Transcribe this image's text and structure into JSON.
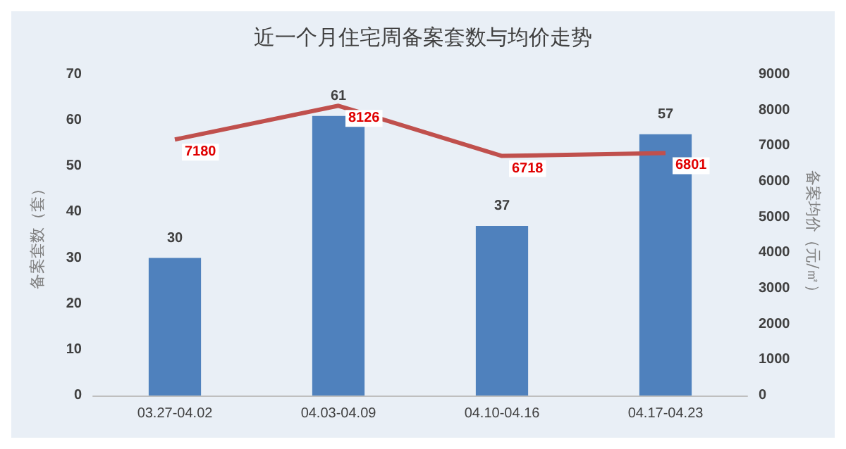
{
  "chart_data": {
    "type": "bar",
    "title": "近一个月住宅周备案套数与均价走势",
    "ylabel": "备案套数（套）",
    "y2label": "备案均价（元/㎡）",
    "categories": [
      "03.27-04.02",
      "04.03-04.09",
      "04.10-04.16",
      "04.17-04.23"
    ],
    "series": [
      {
        "color": "#4f81bd",
        "values": [
          30,
          61,
          37,
          57
        ]
      },
      {
        "type": "line",
        "axis": "y2",
        "color": "#c0504d",
        "values": [
          7180,
          8126,
          6718,
          6801
        ]
      }
    ],
    "ylim": [
      0,
      70
    ],
    "yticks": [
      0,
      10,
      20,
      30,
      40,
      50,
      60,
      70
    ],
    "y2lim": [
      0,
      9000
    ],
    "y2ticks": [
      0,
      1000,
      2000,
      3000,
      4000,
      5000,
      6000,
      7000,
      8000,
      9000
    ],
    "data_labels": true,
    "grid": false,
    "marker": "none"
  }
}
